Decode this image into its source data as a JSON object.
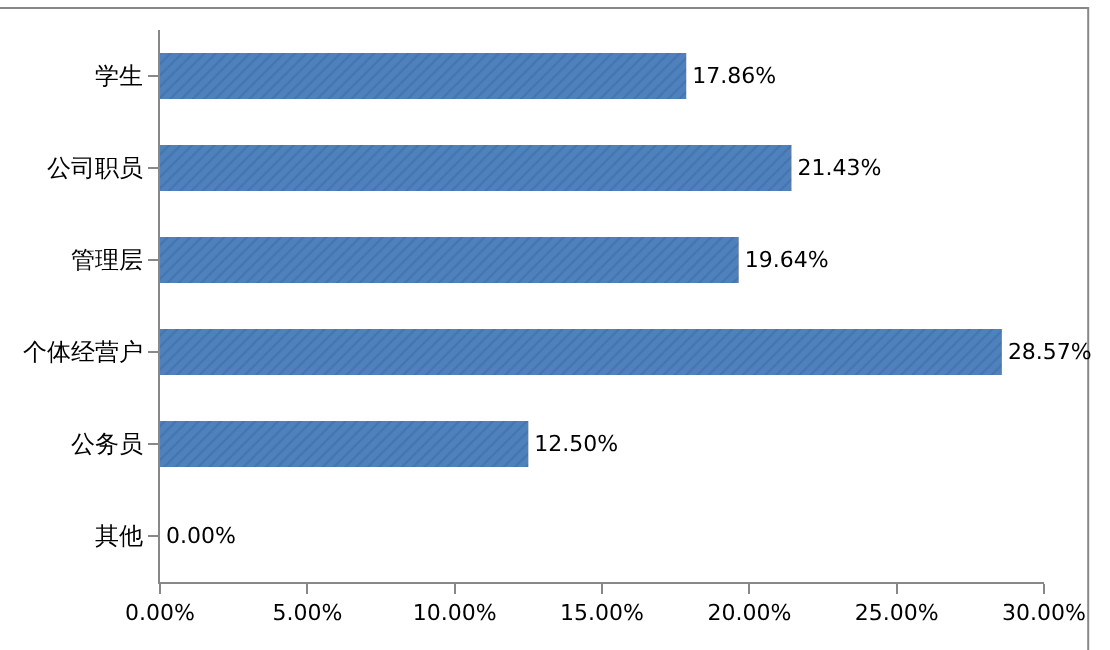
{
  "chart_data": {
    "type": "bar",
    "orientation": "horizontal",
    "categories": [
      "学生",
      "公司职员",
      "管理层",
      "个体经营户",
      "公务员",
      "其他"
    ],
    "values": [
      17.86,
      21.43,
      19.64,
      28.57,
      12.5,
      0.0
    ],
    "value_labels": [
      "17.86%",
      "21.43%",
      "19.64%",
      "28.57%",
      "12.50%",
      "0.00%"
    ],
    "color": "#4f81bd",
    "xlim": [
      0,
      30
    ],
    "xticks": [
      {
        "value": 0,
        "label": "0.00%"
      },
      {
        "value": 5,
        "label": "5.00%"
      },
      {
        "value": 10,
        "label": "10.00%"
      },
      {
        "value": 15,
        "label": "15.00%"
      },
      {
        "value": 20,
        "label": "20.00%"
      },
      {
        "value": 25,
        "label": "25.00%"
      },
      {
        "value": 30,
        "label": "30.00%"
      }
    ],
    "grid": false,
    "legend": false
  }
}
